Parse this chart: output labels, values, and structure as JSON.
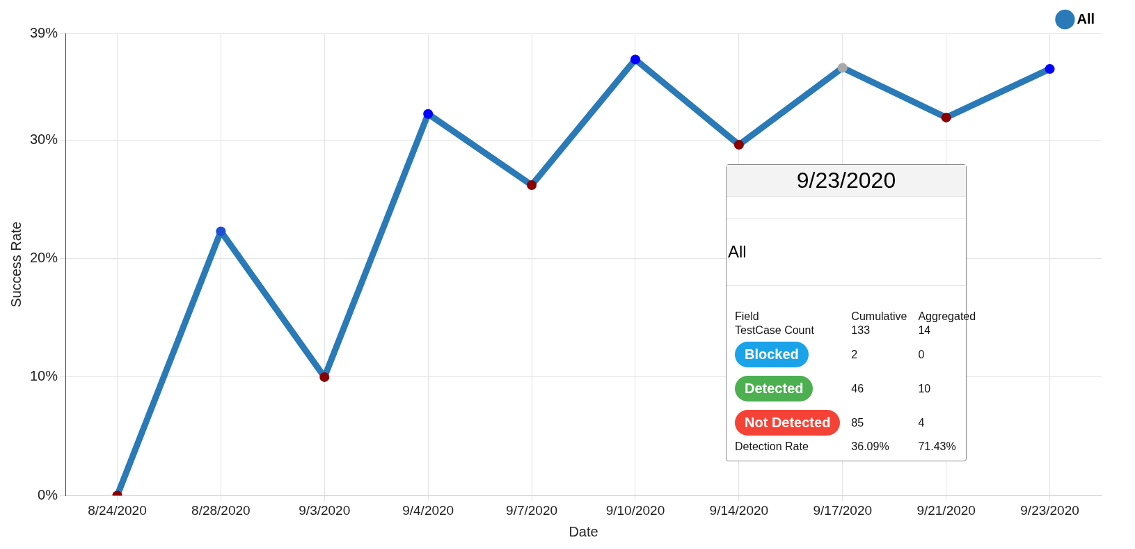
{
  "chart_data": {
    "type": "line",
    "xlabel": "Date",
    "ylabel": "Success Rate",
    "categories": [
      "8/24/2020",
      "8/28/2020",
      "9/3/2020",
      "9/4/2020",
      "9/7/2020",
      "9/10/2020",
      "9/14/2020",
      "9/17/2020",
      "9/21/2020",
      "9/23/2020"
    ],
    "series": [
      {
        "name": "All",
        "color": "#2a7ab8",
        "values": [
          0,
          22.3,
          10,
          32.2,
          26.2,
          36.8,
          29.6,
          36.1,
          31.9,
          36.0
        ],
        "colors": [
          "#8b0000",
          "#1f4fd0",
          "#8b0000",
          "#0000ff",
          "#8b0000",
          "#0000ff",
          "#8b0000",
          "#a9a9a9",
          "#8b0000",
          "#0000ff"
        ]
      }
    ],
    "ylim": [
      0,
      39
    ],
    "yticks": [
      {
        "value": 0,
        "label": "0%"
      },
      {
        "value": 10,
        "label": "10%"
      },
      {
        "value": 20,
        "label": "20%"
      },
      {
        "value": 30,
        "label": "30%"
      },
      {
        "value": 39,
        "label": "39%"
      }
    ],
    "grid": true,
    "legend": "top right",
    "marker": "circle",
    "line_style": "solid",
    "annotations": [
      "9/23/2020",
      "All",
      "Field",
      "Cumulative",
      "Aggregated",
      "TestCase Count",
      "133",
      "14",
      "Blocked",
      "2",
      "0",
      "Detected",
      "46",
      "10",
      "Not Detected",
      "85",
      "4",
      "Detection Rate",
      "36.09%",
      "71.43%"
    ]
  }
}
